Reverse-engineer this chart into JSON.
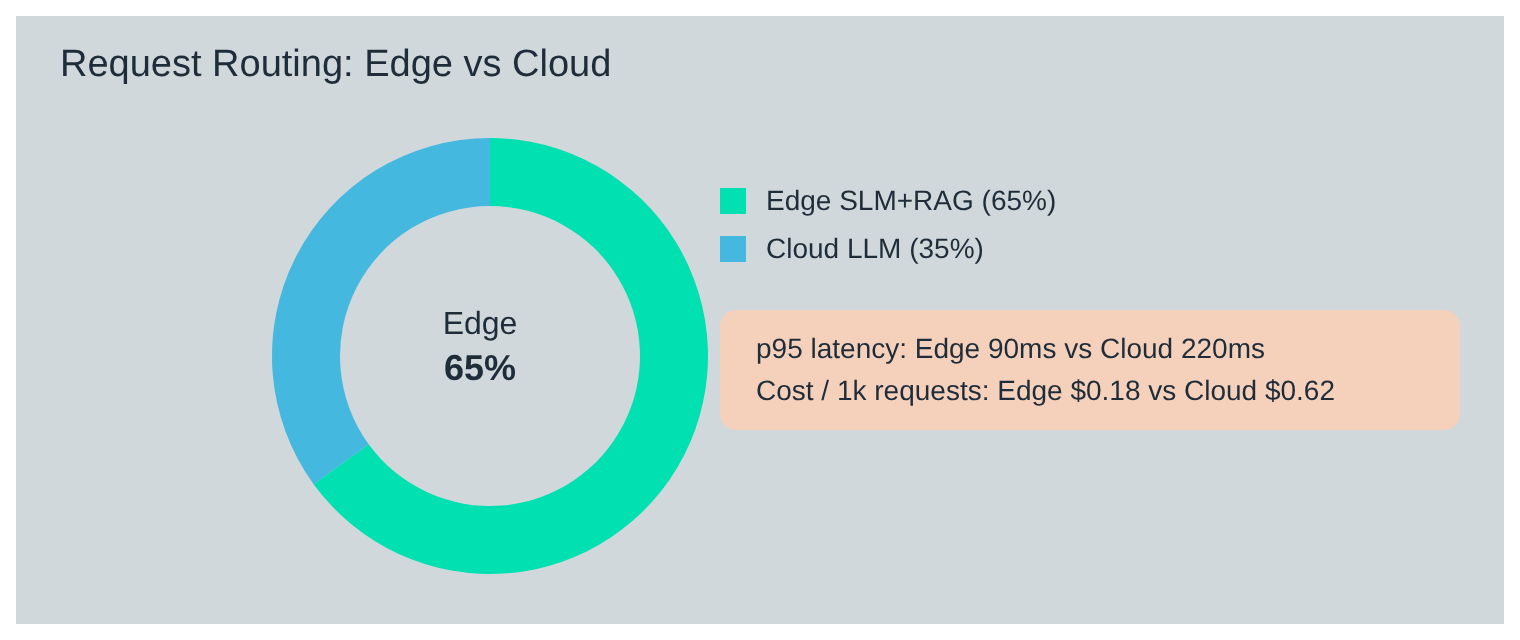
{
  "chart_data": {
    "type": "donut",
    "title": "Request Routing: Edge vs Cloud",
    "categories": [
      "Edge SLM+RAG (65%)",
      "Cloud LLM (35%)"
    ],
    "values": [
      65,
      35
    ],
    "colors": [
      "#00e0b0",
      "#45b8e0"
    ],
    "legend": "right",
    "annotations": [
      "Edge",
      "65%",
      "p95 latency: Edge 90ms vs Cloud 220ms",
      "Cost / 1k requests: Edge $0.18 vs Cloud $0.62"
    ]
  }
}
